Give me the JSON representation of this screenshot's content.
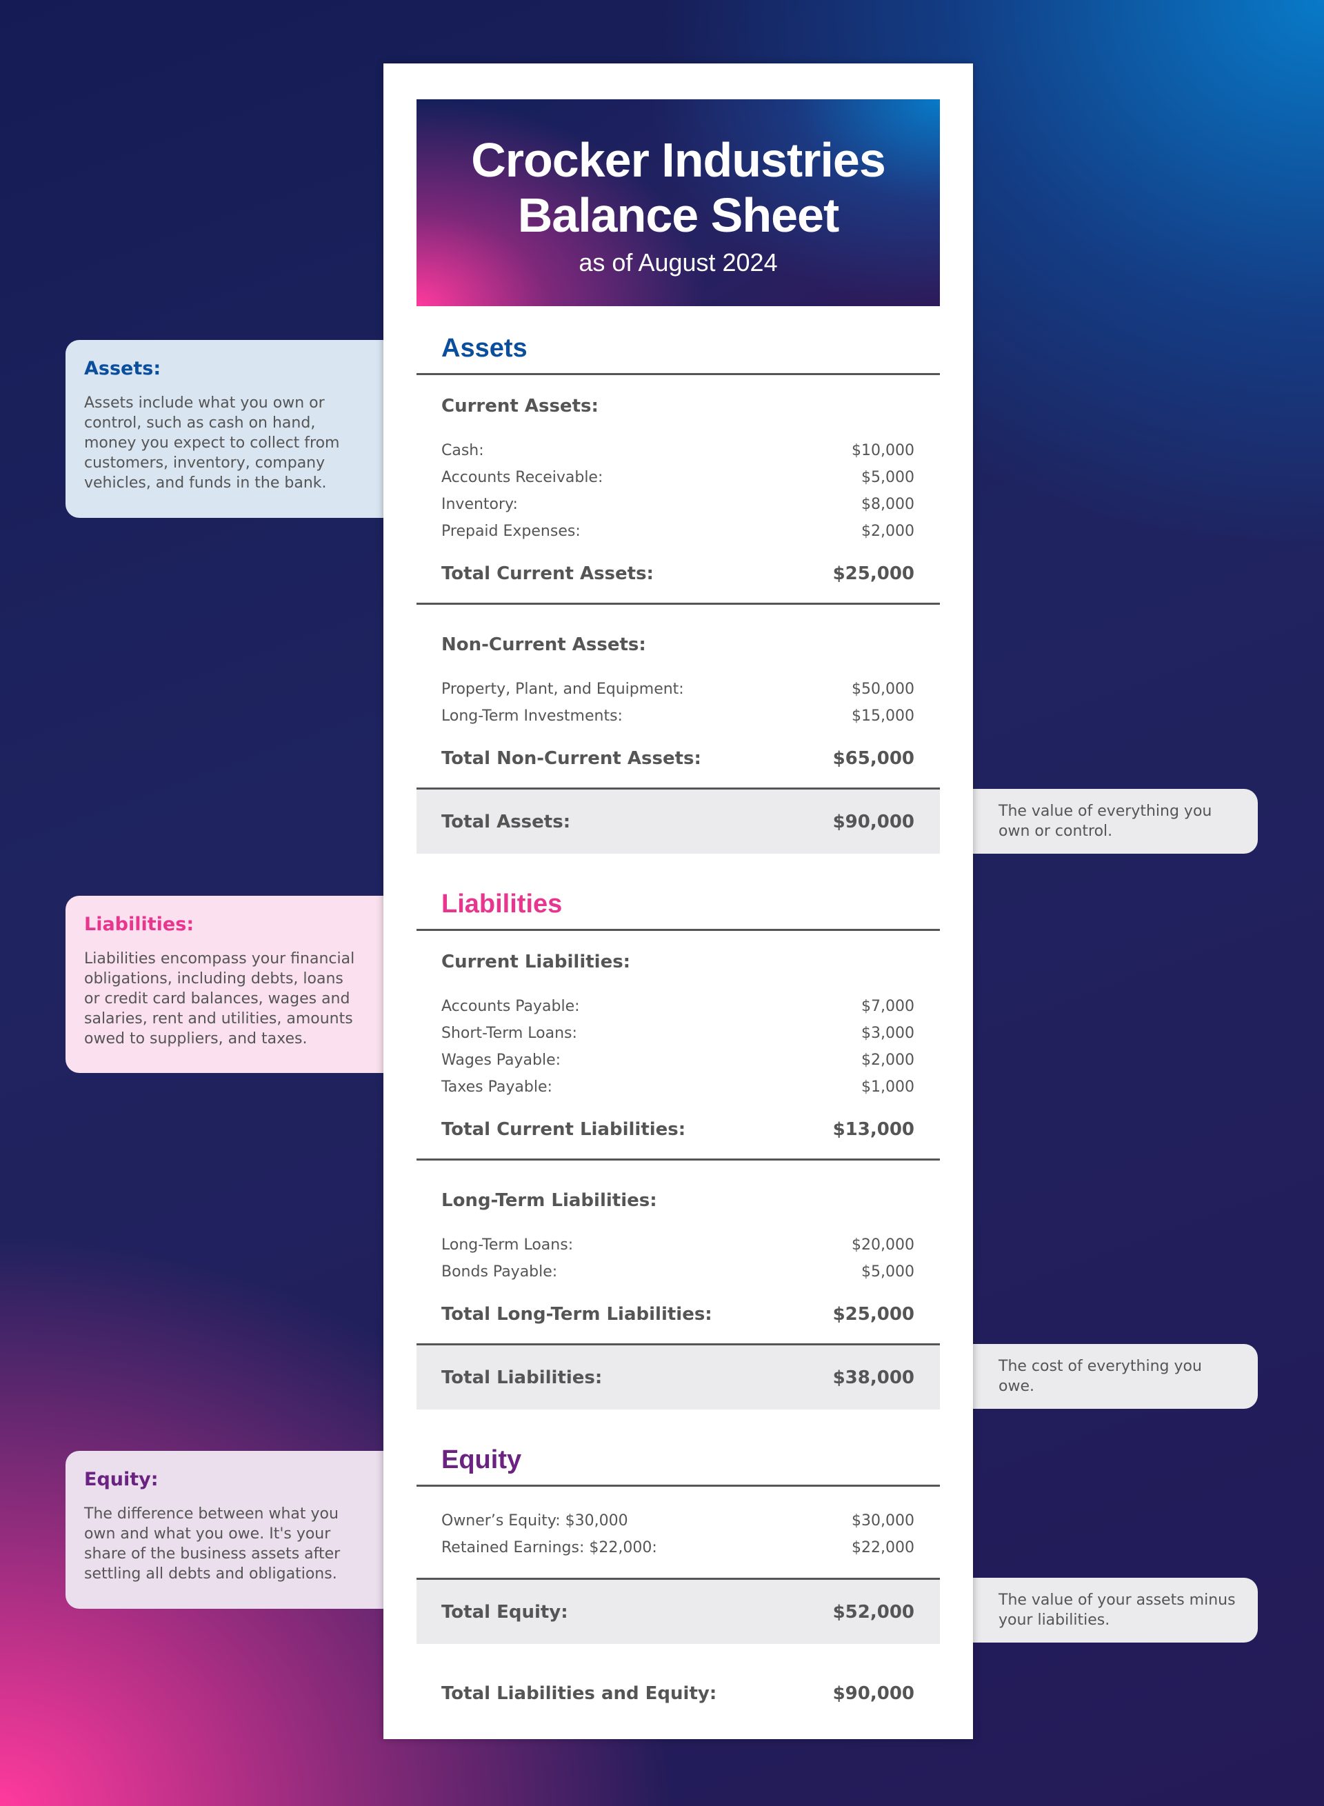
{
  "colors": {
    "assets": "#0b4f9c",
    "liabilities": "#e8368f",
    "equity": "#6a2380",
    "note_assets_bg": "#d9e5f1",
    "note_liabilities_bg": "#fbe1ef",
    "note_equity_bg": "#ebdeed",
    "grand_total_bg": "#ebebed"
  },
  "header": {
    "title": "Crocker Industries Balance Sheet",
    "subtitle": "as of August 2024"
  },
  "notes": {
    "assets": {
      "title": "Assets:",
      "body": "Assets include what you own or control, such as cash on hand, money you expect to collect from customers, inventory, company vehicles, and funds in the bank."
    },
    "liabilities": {
      "title": "Liabilities:",
      "body": "Liabilities encompass your financial obligations, including debts, loans or credit card balances, wages and salaries, rent and utilities, amounts owed to suppliers, and taxes."
    },
    "equity": {
      "title": "Equity:",
      "body": "The difference between what you own and what you owe. It's your share of the business assets after settling all debts and obligations."
    },
    "total_assets": "The value of everything you own or control.",
    "total_liabilities": "The cost of everything you owe.",
    "total_equity": "The value of your assets minus your liabilities."
  },
  "assets": {
    "heading": "Assets",
    "current": {
      "label": "Current Assets:",
      "items": [
        {
          "label": "Cash:",
          "value": "$10,000"
        },
        {
          "label": "Accounts Receivable:",
          "value": "$5,000"
        },
        {
          "label": "Inventory:",
          "value": "$8,000"
        },
        {
          "label": "Prepaid Expenses:",
          "value": "$2,000"
        }
      ],
      "total_label": "Total Current Assets:",
      "total": "$25,000"
    },
    "noncurrent": {
      "label": "Non-Current Assets:",
      "items": [
        {
          "label": "Property, Plant, and Equipment:",
          "value": "$50,000"
        },
        {
          "label": "Long-Term Investments:",
          "value": "$15,000"
        }
      ],
      "total_label": "Total Non-Current Assets:",
      "total": "$65,000"
    },
    "grand_label": "Total Assets:",
    "grand": "$90,000"
  },
  "liabilities": {
    "heading": "Liabilities",
    "current": {
      "label": "Current Liabilities:",
      "items": [
        {
          "label": "Accounts Payable:",
          "value": "$7,000"
        },
        {
          "label": "Short-Term Loans:",
          "value": "$3,000"
        },
        {
          "label": "Wages Payable:",
          "value": "$2,000"
        },
        {
          "label": "Taxes Payable:",
          "value": "$1,000"
        }
      ],
      "total_label": "Total Current Liabilities:",
      "total": "$13,000"
    },
    "longterm": {
      "label": "Long-Term Liabilities:",
      "items": [
        {
          "label": "Long-Term Loans:",
          "value": "$20,000"
        },
        {
          "label": "Bonds Payable:",
          "value": "$5,000"
        }
      ],
      "total_label": "Total Long-Term Liabilities:",
      "total": "$25,000"
    },
    "grand_label": "Total Liabilities:",
    "grand": "$38,000"
  },
  "equity": {
    "heading": "Equity",
    "items": [
      {
        "label": "Owner’s Equity: $30,000",
        "value": "$30,000"
      },
      {
        "label": "Retained Earnings: $22,000:",
        "value": "$22,000"
      }
    ],
    "grand_label": "Total Equity:",
    "grand": "$52,000"
  },
  "final": {
    "label": "Total Liabilities and Equity:",
    "value": "$90,000"
  }
}
